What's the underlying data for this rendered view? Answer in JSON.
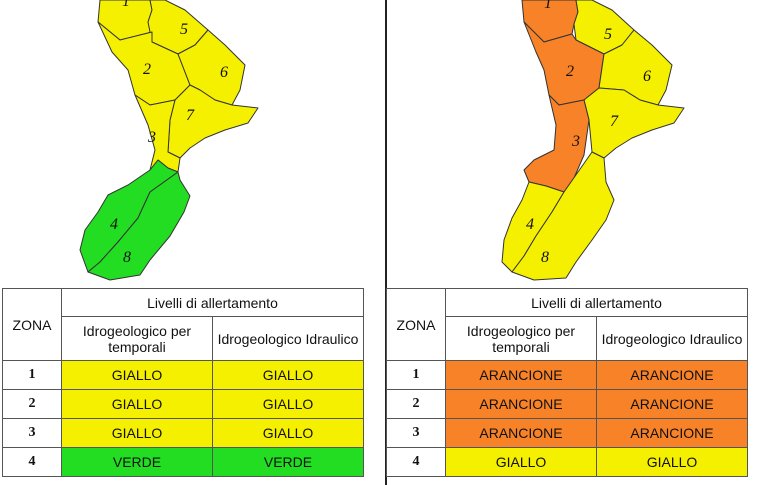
{
  "colors": {
    "giallo": "#f5f000",
    "verde": "#22dd22",
    "arancione": "#f78228",
    "map_border": "#333333"
  },
  "table_header": {
    "zona": "ZONA",
    "livelli": "Livelli di allertamento",
    "col1": "Idrogeologico per temporali",
    "col2": "Idrogeologico Idraulico"
  },
  "left": {
    "zone_labels": [
      "1",
      "2",
      "3",
      "4",
      "5",
      "6",
      "7",
      "8"
    ],
    "zone_colors": {
      "1": "giallo",
      "2": "giallo",
      "3": "giallo",
      "4": "verde",
      "5": "giallo",
      "6": "giallo",
      "7": "giallo",
      "8": "verde"
    },
    "rows": [
      {
        "zona": "1",
        "temporali": "GIALLO",
        "idraulico": "GIALLO",
        "color": "giallo"
      },
      {
        "zona": "2",
        "temporali": "GIALLO",
        "idraulico": "GIALLO",
        "color": "giallo"
      },
      {
        "zona": "3",
        "temporali": "GIALLO",
        "idraulico": "GIALLO",
        "color": "giallo"
      },
      {
        "zona": "4",
        "temporali": "VERDE",
        "idraulico": "VERDE",
        "color": "verde"
      }
    ]
  },
  "right": {
    "zone_labels": [
      "1",
      "2",
      "3",
      "4",
      "5",
      "6",
      "7",
      "8"
    ],
    "zone_colors": {
      "1": "arancione",
      "2": "arancione",
      "3": "arancione",
      "4": "giallo",
      "5": "giallo",
      "6": "giallo",
      "7": "giallo",
      "8": "giallo"
    },
    "rows": [
      {
        "zona": "1",
        "temporali": "ARANCIONE",
        "idraulico": "ARANCIONE",
        "color": "arancione"
      },
      {
        "zona": "2",
        "temporali": "ARANCIONE",
        "idraulico": "ARANCIONE",
        "color": "arancione"
      },
      {
        "zona": "3",
        "temporali": "ARANCIONE",
        "idraulico": "ARANCIONE",
        "color": "arancione"
      },
      {
        "zona": "4",
        "temporali": "GIALLO",
        "idraulico": "GIALLO",
        "color": "giallo"
      }
    ]
  }
}
